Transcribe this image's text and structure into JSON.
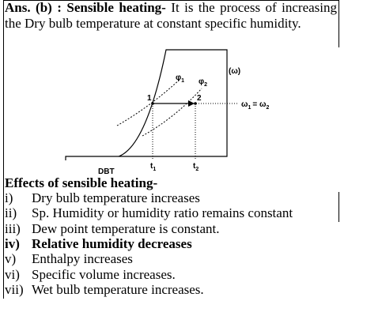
{
  "answer": {
    "lead": "Ans. (b) : Sensible heating-",
    "text": "It is the process of increasing the Dry bulb temperature at constant specific humidity."
  },
  "diagram": {
    "phi1": {
      "base": "φ",
      "sub": "1"
    },
    "phi2": {
      "base": "φ",
      "sub": "2"
    },
    "omega": "(ω)",
    "point1": "1",
    "point2": "2",
    "omega_eq": {
      "w1": "ω",
      "s1": "1",
      "eq": "= ω",
      "s2": "2"
    },
    "x_label": "DBT",
    "t1": {
      "base": "t",
      "sub": "1"
    },
    "t2": {
      "base": "t",
      "sub": "2"
    }
  },
  "effects": {
    "heading": "Effects of sensible heating-",
    "items": [
      {
        "num": "i)",
        "text": "Dry bulb temperature increases"
      },
      {
        "num": "ii)",
        "text": "Sp. Humidity or humidity ratio remains constant"
      },
      {
        "num": "iii)",
        "text": "Dew point temperature is constant."
      },
      {
        "num": "iv)",
        "text": "Relative humidity decreases"
      },
      {
        "num": "v)",
        "text": "Enthalpy increases"
      },
      {
        "num": "vi)",
        "text": "Specific volume increases."
      },
      {
        "num": "vii)",
        "text": "Wet bulb temperature increases."
      }
    ]
  }
}
